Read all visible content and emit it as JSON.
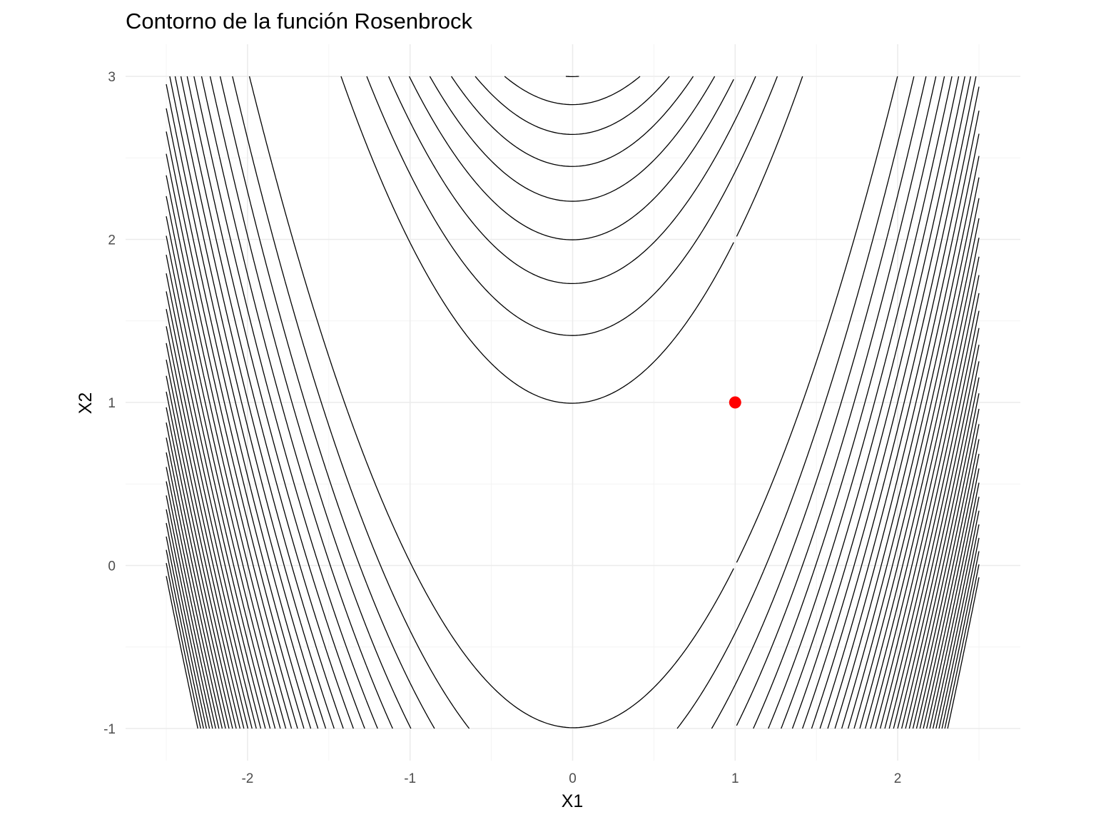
{
  "chart_data": {
    "type": "contour",
    "title": "Contorno de la función Rosenbrock",
    "xlabel": "X1",
    "ylabel": "X2",
    "xlim": [
      -2.5,
      2.5
    ],
    "ylim": [
      -1,
      3
    ],
    "x_ticks": [
      -2,
      -1,
      0,
      1,
      2
    ],
    "x_tick_labels": [
      "-2",
      "-1",
      "0",
      "1",
      "2"
    ],
    "y_ticks": [
      -1,
      0,
      1,
      2,
      3
    ],
    "y_tick_labels": [
      "-1",
      "0",
      "1",
      "2",
      "3"
    ],
    "grid": true,
    "function": "(1 - x1)^2 + 100 * (x2 - x1^2)^2",
    "contour_levels": [
      100,
      200,
      300,
      400,
      500,
      600,
      700,
      800,
      900,
      1000,
      1100,
      1200,
      1300,
      1400,
      1500,
      1600,
      1700,
      1800,
      1900,
      2000,
      2100,
      2200,
      2300,
      2400,
      2500,
      2600,
      2700,
      2800,
      2900,
      3000,
      3100,
      3200,
      3300,
      3400,
      3500,
      3600,
      3700,
      3800,
      3900,
      4000
    ],
    "line_color": "#000000",
    "points": [
      {
        "x": 1,
        "y": 1,
        "color": "#ff0000"
      }
    ]
  }
}
